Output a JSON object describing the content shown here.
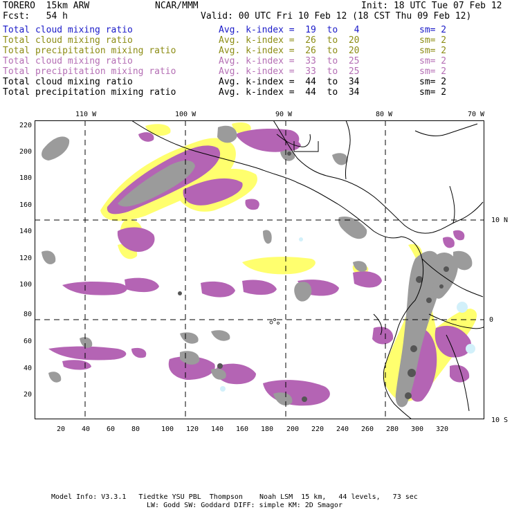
{
  "header": {
    "model": "TORERO  15km ARW",
    "center": "NCAR/MMM",
    "init": "Init: 18 UTC Tue 07 Feb 12",
    "fcst": "Fcst:   54 h",
    "valid": "Valid: 00 UTC Fri 10 Feb 12 (18 CST Thu 09 Feb 12)"
  },
  "legend": [
    {
      "label": "Total cloud mixing ratio",
      "kindex": "Avg. k-index =  19  to   4",
      "sm": "sm= 2",
      "color": "#1a1ac8"
    },
    {
      "label": "Total cloud mixing ratio",
      "kindex": "Avg. k-index =  26  to  20",
      "sm": "sm= 2",
      "color": "#8c8c14"
    },
    {
      "label": "Total precipitation mixing ratio",
      "kindex": "Avg. k-index =  26  to  20",
      "sm": "sm= 2",
      "color": "#8c8c14"
    },
    {
      "label": "Total cloud mixing ratio",
      "kindex": "Avg. k-index =  33  to  25",
      "sm": "sm= 2",
      "color": "#b46eb4"
    },
    {
      "label": "Total precipitation mixing ratio",
      "kindex": "Avg. k-index =  33  to  25",
      "sm": "sm= 2",
      "color": "#b46eb4"
    },
    {
      "label": "Total cloud mixing ratio",
      "kindex": "Avg. k-index =  44  to  34",
      "sm": "sm= 2",
      "color": "#000000"
    },
    {
      "label": "Total precipitation mixing ratio",
      "kindex": "Avg. k-index =  44  to  34",
      "sm": "sm= 2",
      "color": "#000000"
    }
  ],
  "map": {
    "lon_labels": [
      "110 W",
      "100 W",
      "90 W",
      "80 W",
      "70 W"
    ],
    "lat_labels": [
      "10 N",
      "0",
      "10 S"
    ],
    "x_ticks": [
      "20",
      "40",
      "60",
      "80",
      "100",
      "120",
      "140",
      "160",
      "180",
      "200",
      "220",
      "240",
      "260",
      "280",
      "300",
      "320"
    ],
    "y_ticks": [
      "20",
      "40",
      "60",
      "80",
      "100",
      "120",
      "140",
      "160",
      "180",
      "200",
      "220"
    ],
    "colors": {
      "yellow": "#ffff6e",
      "purple": "#b464b4",
      "gray": "#9b9b9b",
      "dark": "#555555",
      "lightblue": "#d2f0fa"
    }
  },
  "footer": {
    "line1": "Model Info: V3.3.1   Tiedtke YSU PBL  Thompson    Noah LSM  15 km,   44 levels,   73 sec",
    "line2": "LW: Godd SW: Goddard DIFF: simple KM: 2D Smagor"
  }
}
